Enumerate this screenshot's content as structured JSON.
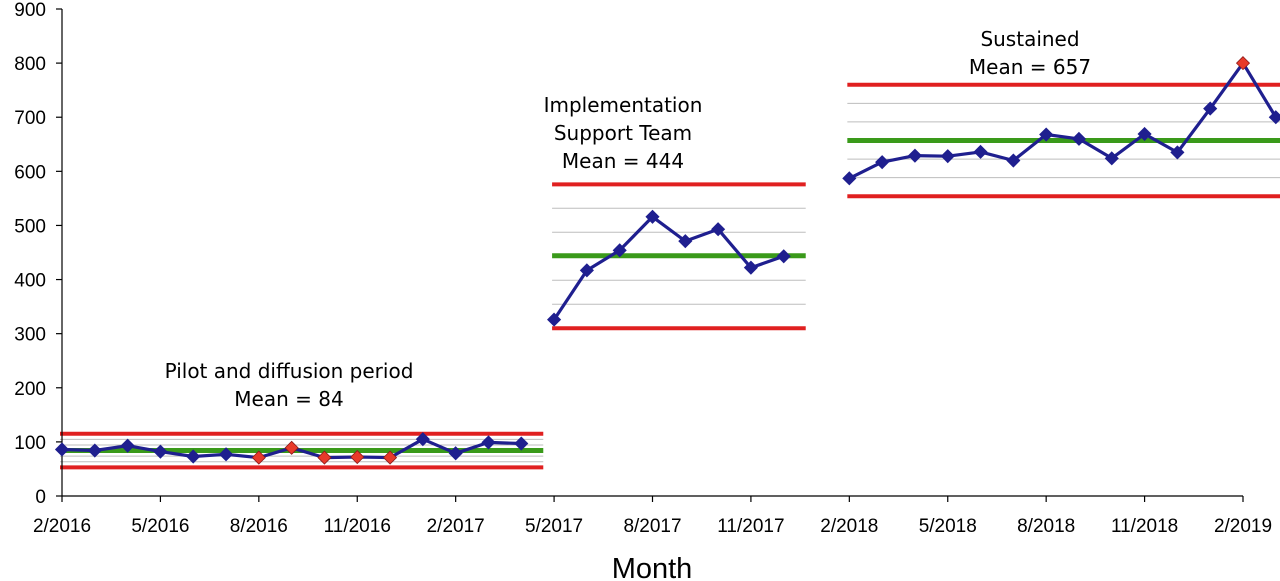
{
  "chart_data": {
    "type": "line",
    "title": "",
    "xlabel": "Month",
    "ylabel": "",
    "ylim": [
      0,
      900
    ],
    "y_ticks": [
      "0",
      "100",
      "200",
      "300",
      "400",
      "500",
      "600",
      "700",
      "800",
      "900"
    ],
    "x_ticks": [
      "2/2016",
      "5/2016",
      "8/2016",
      "11/2016",
      "2/2017",
      "5/2017",
      "8/2017",
      "11/2017",
      "2/2018",
      "5/2018",
      "8/2018",
      "11/2018",
      "2/2019"
    ],
    "grid": "minor gray lines inside control limits",
    "colors": {
      "series": "#1f1f8f",
      "mean": "#3a9a1a",
      "limit": "#e02020",
      "special_cause": "#e83a2a",
      "grid": "#bdbdbd"
    },
    "phases": [
      {
        "annotation": [
          "Pilot and  diffusion period",
          "Mean = 84"
        ],
        "mean": 84,
        "ucl": 115,
        "lcl": 53,
        "points": [
          {
            "x": "2/2016",
            "y": 86,
            "special": false
          },
          {
            "x": "3/2016",
            "y": 84,
            "special": false
          },
          {
            "x": "4/2016",
            "y": 93,
            "special": false
          },
          {
            "x": "5/2016",
            "y": 82,
            "special": false
          },
          {
            "x": "6/2016",
            "y": 73,
            "special": false
          },
          {
            "x": "7/2016",
            "y": 77,
            "special": false
          },
          {
            "x": "8/2016",
            "y": 71,
            "special": true
          },
          {
            "x": "9/2016",
            "y": 89,
            "special": true
          },
          {
            "x": "10/2016",
            "y": 71,
            "special": true
          },
          {
            "x": "11/2016",
            "y": 72,
            "special": true
          },
          {
            "x": "12/2016",
            "y": 71,
            "special": true
          },
          {
            "x": "1/2017",
            "y": 105,
            "special": false
          },
          {
            "x": "2/2017",
            "y": 79,
            "special": false
          },
          {
            "x": "3/2017",
            "y": 99,
            "special": false
          },
          {
            "x": "4/2017",
            "y": 97,
            "special": false
          }
        ]
      },
      {
        "annotation": [
          "Implementation",
          "Support Team",
          "Mean = 444"
        ],
        "mean": 444,
        "ucl": 576,
        "lcl": 310,
        "points": [
          {
            "x": "5/2017",
            "y": 326,
            "special": false
          },
          {
            "x": "6/2017",
            "y": 417,
            "special": false
          },
          {
            "x": "7/2017",
            "y": 454,
            "special": false
          },
          {
            "x": "8/2017",
            "y": 516,
            "special": false
          },
          {
            "x": "9/2017",
            "y": 471,
            "special": false
          },
          {
            "x": "10/2017",
            "y": 493,
            "special": false
          },
          {
            "x": "11/2017",
            "y": 422,
            "special": false
          },
          {
            "x": "12/2017",
            "y": 443,
            "special": false
          }
        ]
      },
      {
        "annotation": [
          "Sustained",
          "Mean = 657"
        ],
        "mean": 657,
        "ucl": 760,
        "lcl": 554,
        "points": [
          {
            "x": "2/2018",
            "y": 587,
            "special": false
          },
          {
            "x": "3/2018",
            "y": 617,
            "special": false
          },
          {
            "x": "4/2018",
            "y": 629,
            "special": false
          },
          {
            "x": "5/2018",
            "y": 628,
            "special": false
          },
          {
            "x": "6/2018",
            "y": 636,
            "special": false
          },
          {
            "x": "7/2018",
            "y": 620,
            "special": false
          },
          {
            "x": "8/2018",
            "y": 668,
            "special": false
          },
          {
            "x": "9/2018",
            "y": 660,
            "special": false
          },
          {
            "x": "10/2018",
            "y": 624,
            "special": false
          },
          {
            "x": "11/2018",
            "y": 669,
            "special": false
          },
          {
            "x": "12/2018",
            "y": 635,
            "special": false
          },
          {
            "x": "1/2019",
            "y": 716,
            "special": false
          },
          {
            "x": "2/2019",
            "y": 800,
            "special": true
          },
          {
            "x": "3/2019",
            "y": 700,
            "special": false
          }
        ]
      }
    ]
  }
}
